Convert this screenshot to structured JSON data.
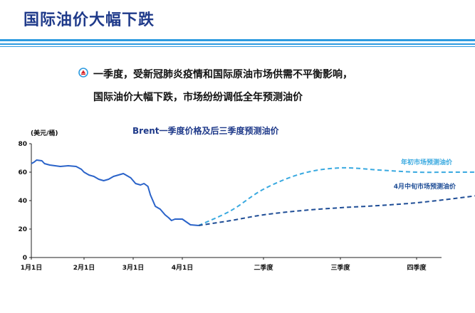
{
  "slide": {
    "title": "国际油价大幅下跌",
    "bullet_lines": [
      "一季度，受新冠肺炎疫情和国际原油市场供需不平衡影响，",
      "国际油价大幅下跌，市场纷纷调低全年预测油价"
    ],
    "bullet_icon": "logo-icon",
    "colors": {
      "title": "#1f3a8a",
      "stripe": "#2e9be0",
      "actual_line": "#2a63c9",
      "forecast_early": "#39a9e0",
      "forecast_april": "#1e4d96"
    }
  },
  "chart_data": {
    "type": "line",
    "title": "Brent一季度价格及后三季度预测油价",
    "ylabel": "(美元/桶)",
    "ylim": [
      0,
      80
    ],
    "yticks": [
      0,
      20,
      40,
      60,
      80
    ],
    "xticks": [
      "1月1日",
      "2月1日",
      "3月1日",
      "4月1日",
      "二季度",
      "三季度",
      "四季度"
    ],
    "series": [
      {
        "name": "",
        "style": "solid",
        "points": [
          [
            0,
            66
          ],
          [
            0.05,
            67
          ],
          [
            0.1,
            68.5
          ],
          [
            0.2,
            68
          ],
          [
            0.25,
            66
          ],
          [
            0.35,
            65
          ],
          [
            0.45,
            64.5
          ],
          [
            0.55,
            64
          ],
          [
            0.7,
            64.5
          ],
          [
            0.85,
            64
          ],
          [
            0.95,
            62
          ],
          [
            1.0,
            60
          ],
          [
            1.1,
            58
          ],
          [
            1.2,
            57
          ],
          [
            1.3,
            55
          ],
          [
            1.4,
            54
          ],
          [
            1.5,
            55
          ],
          [
            1.6,
            57
          ],
          [
            1.7,
            58
          ],
          [
            1.8,
            59
          ],
          [
            1.85,
            58
          ],
          [
            1.95,
            56
          ],
          [
            2.0,
            54
          ],
          [
            2.05,
            52
          ],
          [
            2.15,
            51
          ],
          [
            2.22,
            52
          ],
          [
            2.3,
            50
          ],
          [
            2.35,
            44
          ],
          [
            2.45,
            36
          ],
          [
            2.5,
            35
          ],
          [
            2.55,
            34
          ],
          [
            2.65,
            30
          ],
          [
            2.72,
            28
          ],
          [
            2.78,
            26
          ],
          [
            2.85,
            27
          ],
          [
            2.9,
            27
          ],
          [
            3.0,
            27
          ],
          [
            3.05,
            25
          ],
          [
            3.1,
            23
          ],
          [
            3.2,
            22.5
          ]
        ]
      },
      {
        "name": "年初市场预测油价",
        "style": "dashed",
        "points": [
          [
            3.2,
            22.5
          ],
          [
            3.6,
            33
          ],
          [
            4.0,
            48
          ],
          [
            4.5,
            59
          ],
          [
            5.0,
            63
          ],
          [
            5.5,
            61.5
          ],
          [
            6.0,
            60
          ],
          [
            6.5,
            60
          ],
          [
            7.0,
            60
          ]
        ]
      },
      {
        "name": "4月中旬市场预测油价",
        "style": "dashed",
        "points": [
          [
            3.2,
            22.5
          ],
          [
            3.6,
            26
          ],
          [
            4.0,
            30
          ],
          [
            4.5,
            33
          ],
          [
            5.0,
            35
          ],
          [
            5.5,
            36.5
          ],
          [
            6.0,
            38.5
          ],
          [
            6.5,
            41.5
          ],
          [
            7.0,
            45
          ]
        ]
      }
    ]
  }
}
